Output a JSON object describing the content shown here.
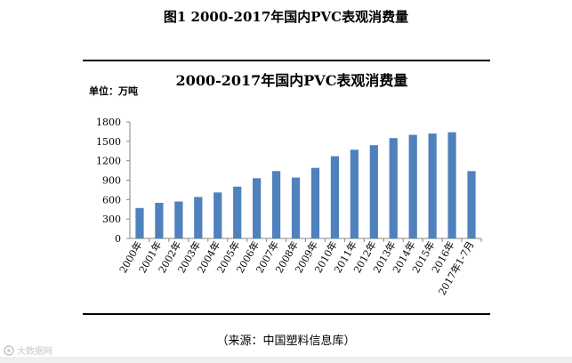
{
  "figure": {
    "caption": "图1  2000-2017年国内PVC表观消费量",
    "source": "（来源：中国塑料信息库）",
    "watermark": "大数据网"
  },
  "colors": {
    "bar": "#4f81bd",
    "axis": "#868686",
    "text": "#000000",
    "rule": "#000000"
  },
  "chart_data": {
    "type": "bar",
    "title": "2000-2017年国内PVC表观消费量",
    "unit_label": "单位：万吨",
    "xlabel": "",
    "ylabel": "",
    "ylim": [
      0,
      1800
    ],
    "yticks": [
      0,
      300,
      600,
      900,
      1200,
      1500,
      1800
    ],
    "grid": false,
    "legend": "none",
    "categories": [
      "2000年",
      "2001年",
      "2002年",
      "2003年",
      "2004年",
      "2005年",
      "2006年",
      "2007年",
      "2008年",
      "2009年",
      "2010年",
      "2011年",
      "2012年",
      "2013年",
      "2014年",
      "2015年",
      "2016年",
      "2017年1-7月"
    ],
    "values": [
      470,
      550,
      570,
      640,
      710,
      800,
      930,
      1040,
      940,
      1090,
      1270,
      1370,
      1440,
      1550,
      1600,
      1620,
      1640,
      1040
    ]
  }
}
